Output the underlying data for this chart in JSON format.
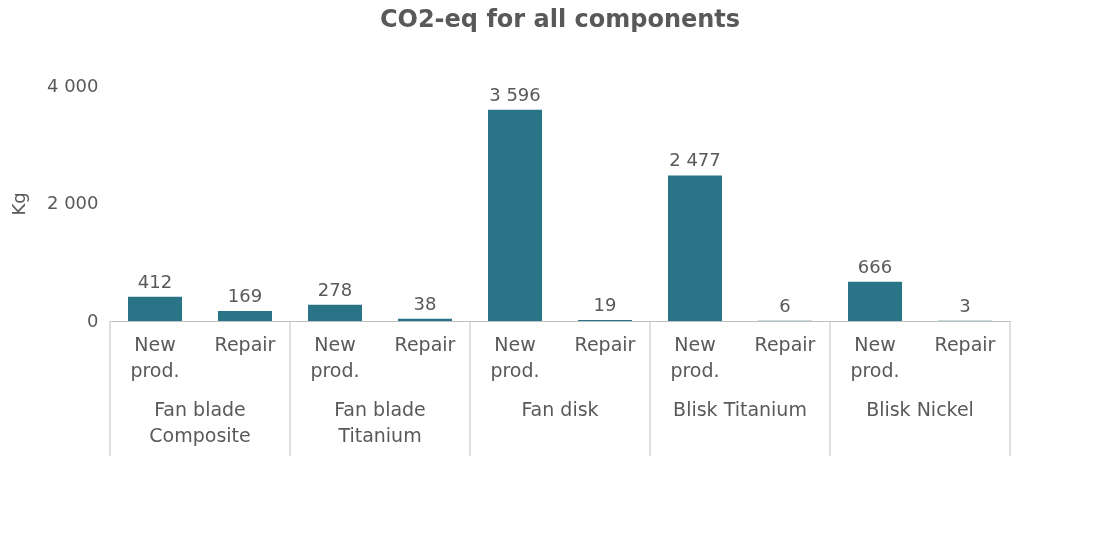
{
  "chart_data": {
    "type": "bar",
    "title": "CO2-eq for all components",
    "ylabel": "Kg",
    "categories": [
      "New prod.",
      "Repair",
      "New prod.",
      "Repair",
      "New prod.",
      "Repair",
      "New prod.",
      "Repair",
      "New prod.",
      "Repair"
    ],
    "annotations": [
      "Fan blade Composite",
      "Fan blade Titanium",
      "Fan disk",
      "Blisk Titanium",
      "Blisk Nickel"
    ],
    "values": [
      412,
      169,
      278,
      38,
      3596,
      19,
      2477,
      6,
      666,
      3
    ],
    "value_labels": [
      "412",
      "169",
      "278",
      "38",
      "3 596",
      "19",
      "2 477",
      "6",
      "666",
      "3"
    ],
    "color": "#2a7488",
    "ylim": [
      0,
      4000
    ],
    "yticks": [
      0,
      {
        "value": 2000,
        "label": "2 000"
      },
      {
        "value": 4000,
        "label": "4 000"
      }
    ],
    "grid": false
  }
}
